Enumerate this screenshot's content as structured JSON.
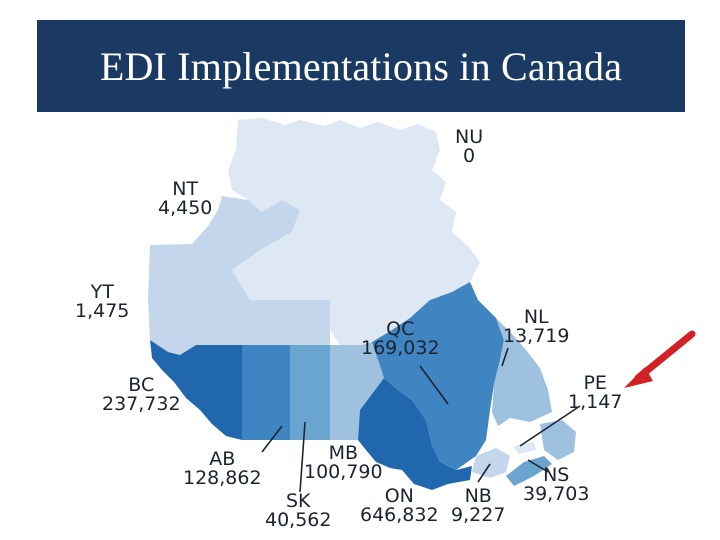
{
  "title": "EDI Implementations in Canada",
  "colors": {
    "title_bar": "#1b3a63",
    "arrow": "#d32027",
    "shade_lightest": "#dde8f4",
    "shade_light": "#c3d6eb",
    "shade_medium_light": "#9dc1df",
    "shade_medium": "#6aa5d0",
    "shade_medium_dark": "#3f85c2",
    "shade_dark": "#2067ad"
  },
  "provinces": [
    {
      "code": "NU",
      "value": "0"
    },
    {
      "code": "NT",
      "value": "4,450"
    },
    {
      "code": "YT",
      "value": "1,475"
    },
    {
      "code": "BC",
      "value": "237,732"
    },
    {
      "code": "AB",
      "value": "128,862"
    },
    {
      "code": "SK",
      "value": "40,562"
    },
    {
      "code": "MB",
      "value": "100,790"
    },
    {
      "code": "ON",
      "value": "646,832"
    },
    {
      "code": "QC",
      "value": "169,032"
    },
    {
      "code": "NL",
      "value": "13,719"
    },
    {
      "code": "PE",
      "value": "1,147"
    },
    {
      "code": "NB",
      "value": "9,227"
    },
    {
      "code": "NS",
      "value": "39,703"
    }
  ]
}
